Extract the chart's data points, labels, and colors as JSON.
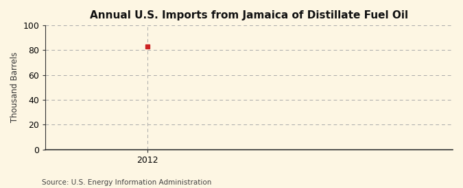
{
  "title": "Annual U.S. Imports from Jamaica of Distillate Fuel Oil",
  "ylabel": "Thousand Barrels",
  "source_text": "Source: U.S. Energy Information Administration",
  "x_data": [
    2012
  ],
  "y_data": [
    83
  ],
  "marker_color": "#cc2222",
  "marker_style": "s",
  "marker_size": 4,
  "xlim": [
    2011.5,
    2013.5
  ],
  "ylim": [
    0,
    100
  ],
  "yticks": [
    0,
    20,
    40,
    60,
    80,
    100
  ],
  "xticks": [
    2012
  ],
  "background_color": "#fdf6e3",
  "grid_color": "#aaaaaa",
  "spine_color": "#333333",
  "title_fontsize": 11,
  "axis_label_fontsize": 8.5,
  "tick_fontsize": 9,
  "source_fontsize": 7.5
}
